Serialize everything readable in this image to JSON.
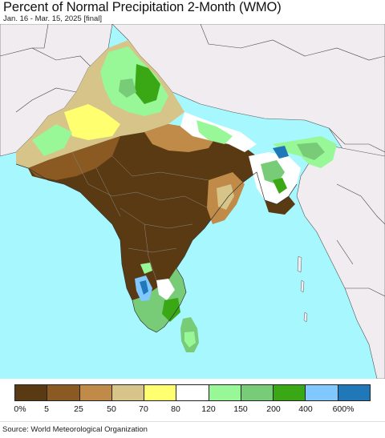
{
  "header": {
    "title": "Percent of Normal Precipitation 2-Month (WMO)",
    "subtitle": "Jan. 16 - Mar. 15, 2025 [final]"
  },
  "legend": {
    "colors": [
      "#5a3a12",
      "#8a5a22",
      "#c08a48",
      "#d6c488",
      "#ffff70",
      "#ffffff",
      "#98f898",
      "#78cc78",
      "#3aa814",
      "#80c8ff",
      "#2078b8"
    ],
    "labels": [
      "0%",
      "5",
      "25",
      "50",
      "70",
      "80",
      "120",
      "150",
      "200",
      "400",
      "600%"
    ]
  },
  "footer": {
    "source": "Source: World Meteorological Organization"
  },
  "map_colors": {
    "ocean": "#a7f7ff",
    "outside_land": "#f0ecf0",
    "very_dry": "#5a3a12",
    "dry": "#8a5a22",
    "below": "#c08a48",
    "slightly_below": "#d6c488",
    "near_normal_low": "#ffff70",
    "near_normal": "#ffffff",
    "above": "#98f898",
    "well_above": "#78cc78",
    "much_above": "#3aa814",
    "very_wet": "#80c8ff",
    "extreme_wet": "#2078b8"
  }
}
